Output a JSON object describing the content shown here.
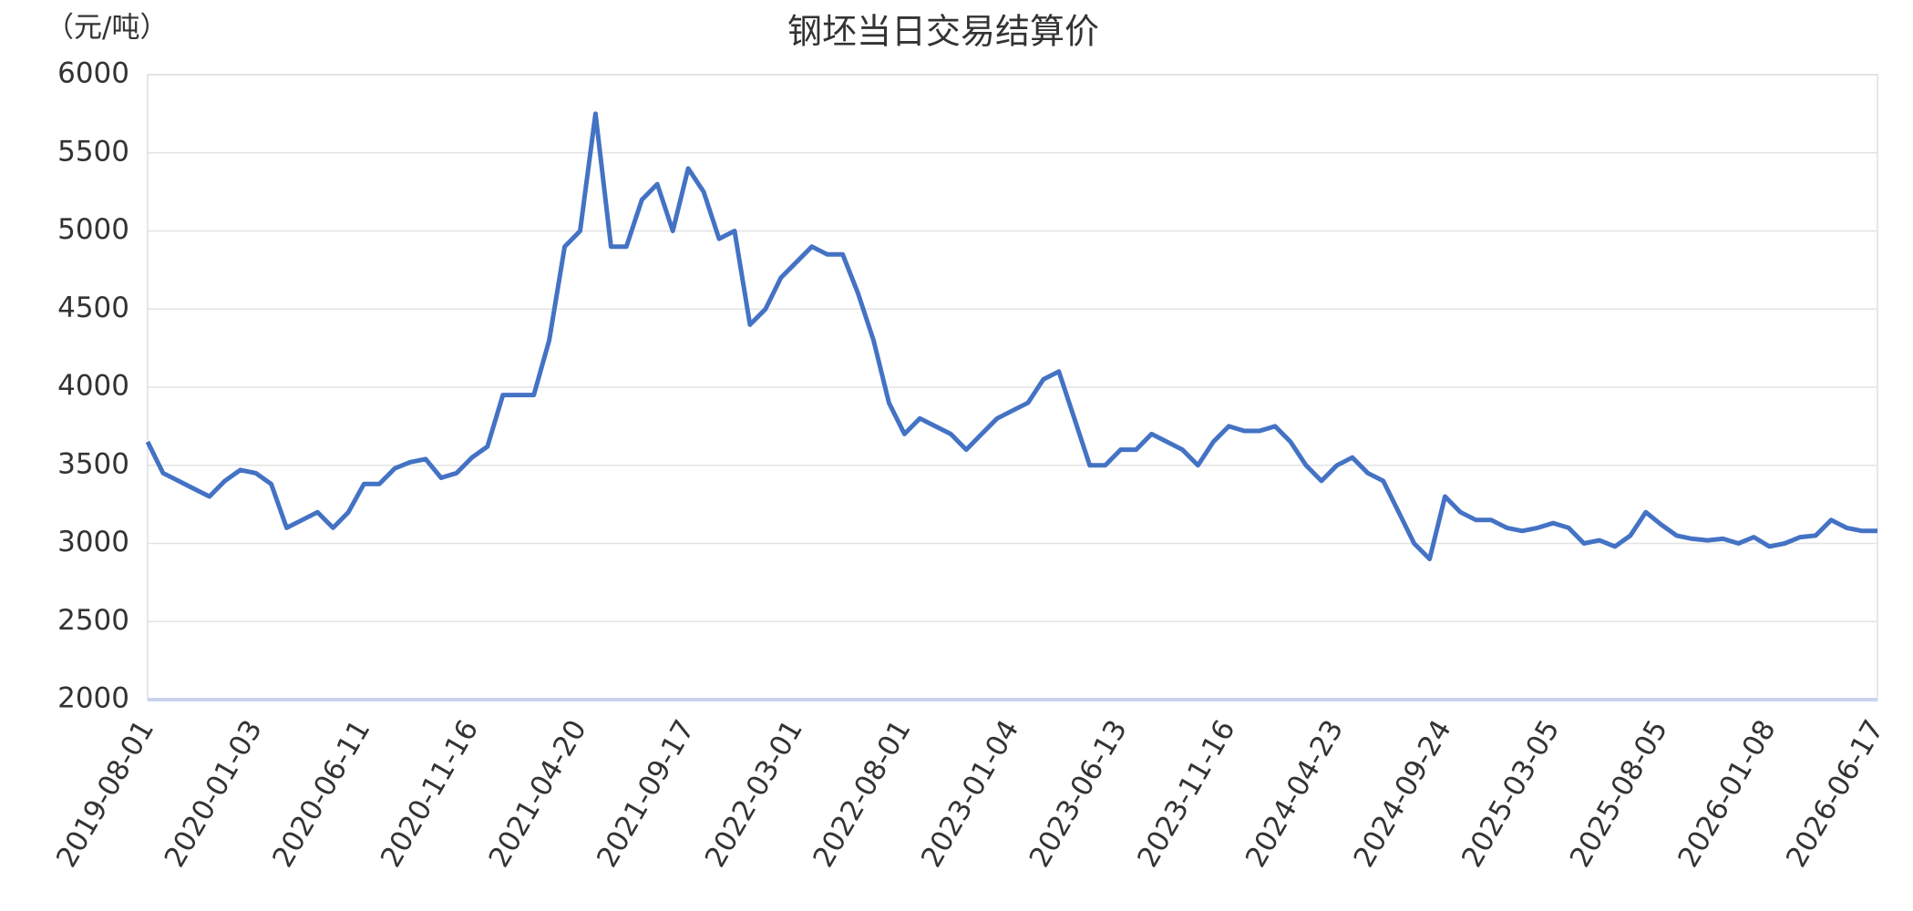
{
  "chart_data": {
    "type": "line",
    "title": "钢坯当日交易结算价",
    "y_label": "（元/吨）",
    "categories": [
      "2019-08-01",
      null,
      null,
      null,
      null,
      null,
      null,
      "2020-01-03",
      null,
      null,
      null,
      null,
      null,
      null,
      "2020-06-11",
      null,
      null,
      null,
      null,
      null,
      null,
      "2020-11-16",
      null,
      null,
      null,
      null,
      null,
      null,
      "2021-04-20",
      null,
      null,
      null,
      null,
      null,
      null,
      "2021-09-17",
      null,
      null,
      null,
      null,
      null,
      null,
      "2022-03-01",
      null,
      null,
      null,
      null,
      null,
      null,
      "2022-08-01",
      null,
      null,
      null,
      null,
      null,
      null,
      "2023-01-04",
      null,
      null,
      null,
      null,
      null,
      null,
      "2023-06-13",
      null,
      null,
      null,
      null,
      null,
      null,
      "2023-11-16",
      null,
      null,
      null,
      null,
      null,
      null,
      "2024-04-23",
      null,
      null,
      null,
      null,
      null,
      null,
      "2024-09-24",
      null,
      null,
      null,
      null,
      null,
      null,
      "2025-03-05",
      null,
      null,
      null,
      null,
      null,
      null,
      "2025-08-05",
      null,
      null,
      null,
      null,
      null,
      null,
      "2026-01-08",
      null,
      null,
      null,
      null,
      null,
      null,
      "2026-06-17"
    ],
    "values": [
      3650,
      3450,
      3400,
      3350,
      3300,
      3400,
      3470,
      3450,
      3380,
      3100,
      3150,
      3200,
      3100,
      3200,
      3380,
      3380,
      3480,
      3520,
      3540,
      3420,
      3450,
      3550,
      3620,
      3950,
      3950,
      3950,
      4300,
      4900,
      5000,
      5750,
      4900,
      4900,
      5200,
      5300,
      5000,
      5400,
      5250,
      4950,
      5000,
      4400,
      4500,
      4700,
      4800,
      4900,
      4850,
      4850,
      4600,
      4300,
      3900,
      3700,
      3800,
      3750,
      3700,
      3600,
      3700,
      3800,
      3850,
      3900,
      4050,
      4100,
      3800,
      3500,
      3500,
      3600,
      3600,
      3700,
      3650,
      3600,
      3500,
      3650,
      3750,
      3720,
      3720,
      3750,
      3650,
      3500,
      3400,
      3500,
      3550,
      3450,
      3400,
      3200,
      3000,
      2900,
      3300,
      3200,
      3150,
      3150,
      3100,
      3080,
      3100,
      3130,
      3100,
      3000,
      3020,
      2980,
      3050,
      3200,
      3120,
      3050,
      3030,
      3020,
      3030,
      3000,
      3040,
      2980,
      3000,
      3040,
      3050,
      3150,
      3100,
      3080,
      3080
    ],
    "color": "#4472c4",
    "ylim": [
      2000,
      6000
    ],
    "yticks": [
      2000,
      2500,
      3000,
      3500,
      4000,
      4500,
      5000,
      5500,
      6000
    ],
    "grid": true
  }
}
